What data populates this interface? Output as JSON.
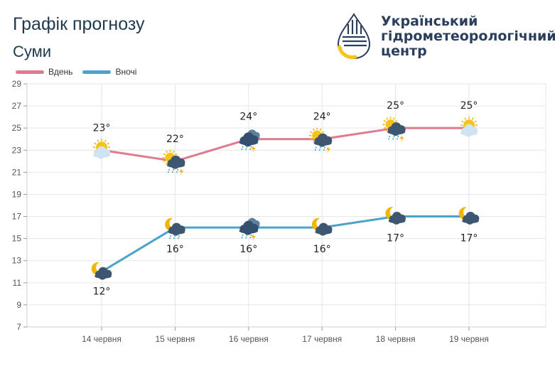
{
  "header": {
    "title": "Графік прогнозу",
    "city": "Суми"
  },
  "logo": {
    "text": "Український\nгідрометеорологічний\nцентр",
    "colors": {
      "navy": "#2b3e5c",
      "yellow": "#f5c518"
    }
  },
  "legend": {
    "day_label": "Вдень",
    "night_label": "Вночі"
  },
  "colors": {
    "day": "#e07a8f",
    "night": "#4ba3cc",
    "grid": "#e6e6e6"
  },
  "chart_data": {
    "type": "line",
    "categories": [
      "14 червня",
      "15 червня",
      "16 червня",
      "17 червня",
      "18 червня",
      "19 червня"
    ],
    "series": [
      {
        "name": "Вдень",
        "values": [
          23,
          22,
          24,
          24,
          25,
          25
        ],
        "labels": [
          "23°",
          "22°",
          "24°",
          "24°",
          "25°",
          "25°"
        ],
        "icons": [
          "partly-cloudy-day-icon",
          "rain-thunder-day-icon",
          "rain-thunder-cloud-icon",
          "rain-thunder-day-icon",
          "rain-thunder-day-icon",
          "partly-cloudy-day-icon"
        ]
      },
      {
        "name": "Вночі",
        "values": [
          12,
          16,
          16,
          16,
          17,
          17
        ],
        "labels": [
          "12°",
          "16°",
          "16°",
          "16°",
          "17°",
          "17°"
        ],
        "icons": [
          "cloudy-night-icon",
          "rain-night-icon",
          "rain-thunder-cloud-icon",
          "cloudy-night-icon",
          "cloudy-night-icon",
          "cloudy-night-icon"
        ]
      }
    ],
    "y_ticks": [
      "29",
      "27",
      "25",
      "23",
      "21",
      "19",
      "17",
      "15",
      "13",
      "11",
      "9",
      "7"
    ],
    "ylim": [
      7,
      29
    ],
    "grid": true,
    "legend_position": "top-left"
  }
}
